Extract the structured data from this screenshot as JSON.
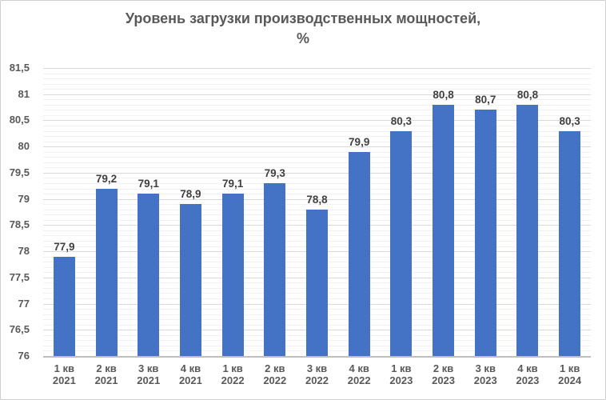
{
  "chart": {
    "title_lines": [
      "Уровень загрузки производственных мощностей,",
      "%"
    ]
  },
  "chart_data": {
    "type": "bar",
    "title": "Уровень загрузки производственных мощностей, %",
    "categories": [
      "1 кв 2021",
      "2 кв 2021",
      "3 кв 2021",
      "4 кв 2021",
      "1 кв 2022",
      "2 кв 2022",
      "3 кв 2022",
      "4 кв 2022",
      "1 кв 2023",
      "2 кв 2023",
      "3 кв 2023",
      "4 кв 2023",
      "1 кв 2024"
    ],
    "values": [
      77.9,
      79.2,
      79.1,
      78.9,
      79.1,
      79.3,
      78.8,
      79.9,
      80.3,
      80.8,
      80.7,
      80.8,
      80.3
    ],
    "value_labels": [
      "77,9",
      "79,2",
      "79,1",
      "78,9",
      "79,1",
      "79,3",
      "78,8",
      "79,9",
      "80,3",
      "80,8",
      "80,7",
      "80,8",
      "80,3"
    ],
    "xlabel": "",
    "ylabel": "",
    "ylim": [
      76,
      81.5
    ],
    "ytick_step": 0.5,
    "ytick_labels": [
      "76",
      "76,5",
      "77",
      "77,5",
      "78",
      "78,5",
      "79",
      "79,5",
      "80",
      "80,5",
      "81",
      "81,5"
    ],
    "minor_grid_step": 0.1,
    "grid": "major and minor horizontal",
    "legend": "none",
    "bar_color": "#4472C4",
    "colors": {
      "bar": "#4472C4",
      "title_text": "#595959",
      "axis_tick_text": "#595959",
      "data_label_text": "#404040",
      "major_gridline": "#d9d9d9",
      "minor_gridline": "#f1f1f1",
      "axis_line": "#bfbfbf",
      "background": "#ffffff",
      "frame_border": "#cfcfcf"
    }
  }
}
